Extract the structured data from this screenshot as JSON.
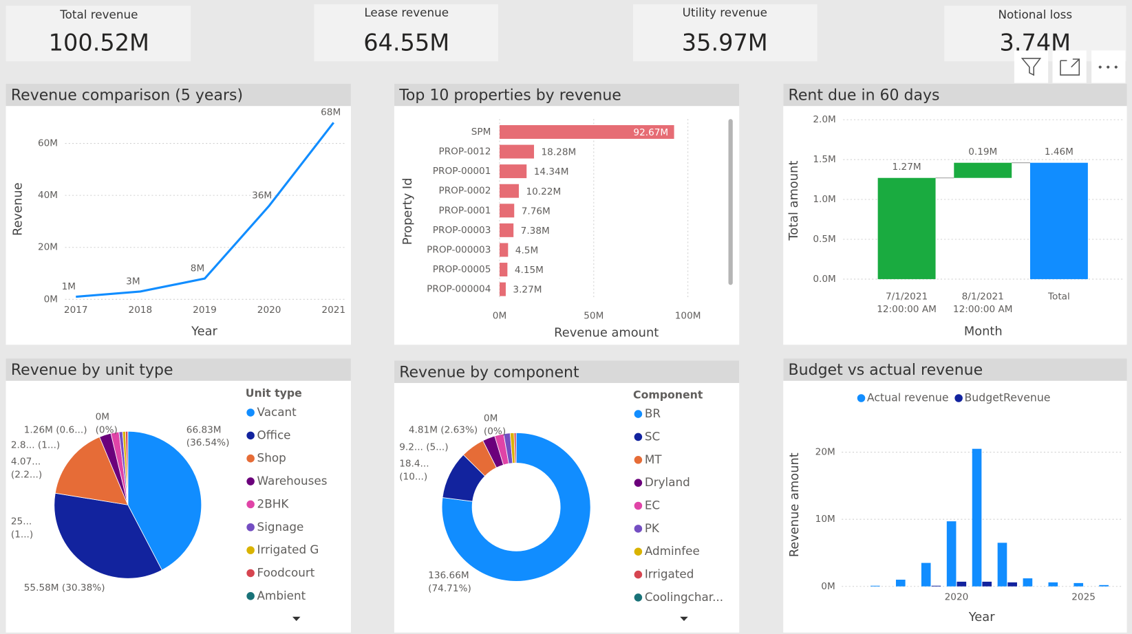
{
  "cards": [
    {
      "label": "Total revenue",
      "value": "100.52M"
    },
    {
      "label": "Lease revenue",
      "value": "64.55M"
    },
    {
      "label": "Utility revenue",
      "value": "35.97M"
    },
    {
      "label": "Notional loss",
      "value": "3.74M"
    }
  ],
  "chart_data": [
    {
      "type": "line",
      "title": "Revenue comparison (5 years)",
      "x_label": "Year",
      "y_label": "Revenue",
      "x": [
        2017,
        2018,
        2019,
        2020,
        2021
      ],
      "values": [
        1,
        3,
        8,
        36,
        68
      ],
      "value_labels": [
        "1M",
        "3M",
        "8M",
        "36M",
        "68M"
      ],
      "color": "#118dff",
      "xlim": [
        2017,
        2021
      ],
      "ylim": [
        0,
        73
      ],
      "xticks": [
        2017,
        2018,
        2019,
        2020,
        2021
      ],
      "yticks": [
        {
          "value": 0,
          "label": "0M"
        },
        {
          "value": 20,
          "label": "20M"
        },
        {
          "value": 40,
          "label": "40M"
        },
        {
          "value": 60,
          "label": "60M"
        }
      ],
      "grid": true
    },
    {
      "type": "bar",
      "title": "Top 10 properties by revenue",
      "x_label": "Revenue amount",
      "y_label": "Property Id",
      "categories": [
        "SPM",
        "PROP-0012",
        "PROP-00001",
        "PROP-0002",
        "PROP-0001",
        "PROP-00003",
        "PROP-000003",
        "PROP-00005",
        "PROP-000004"
      ],
      "values": [
        92.67,
        18.28,
        14.34,
        10.22,
        7.76,
        7.38,
        4.5,
        4.15,
        3.27
      ],
      "value_labels": [
        "92.67M",
        "18.28M",
        "14.34M",
        "10.22M",
        "7.76M",
        "7.38M",
        "4.5M",
        "4.15M",
        "3.27M"
      ],
      "color": "#e66c74",
      "xlim": [
        0,
        115
      ],
      "xticks": [
        {
          "value": 0,
          "label": "0M"
        },
        {
          "value": 50,
          "label": "50M"
        },
        {
          "value": 100,
          "label": "100M"
        }
      ],
      "grid": true
    },
    {
      "type": "waterfall",
      "title": "Rent due in 60 days",
      "x_label": "Month",
      "y_label": "Total amount",
      "categories": [
        "7/1/2021 12:00:00 AM",
        "8/1/2021 12:00:00 AM",
        "Total"
      ],
      "values": [
        1.27,
        0.19,
        1.46
      ],
      "value_labels": [
        "1.27M",
        "0.19M",
        "1.46M"
      ],
      "colors": [
        "#1aab40",
        "#1aab40",
        "#118dff"
      ],
      "show_total": true,
      "ylim": [
        0,
        2
      ],
      "yticks": [
        {
          "value": 0,
          "label": "0.0M"
        },
        {
          "value": 0.5,
          "label": "0.5M"
        },
        {
          "value": 1,
          "label": "1.0M"
        },
        {
          "value": 1.5,
          "label": "1.5M"
        },
        {
          "value": 2,
          "label": "2.0M"
        }
      ],
      "grid": true
    },
    {
      "type": "pie",
      "title": "Revenue by unit type",
      "legend_title": "Unit type",
      "categories": [
        "Vacant",
        "Office",
        "Shop",
        "Warehouses",
        "2BHK",
        "Signage",
        "Irrigated G",
        "Foodcourt",
        "Ambient"
      ],
      "values": [
        66.83,
        55.58,
        25.5,
        4.07,
        2.8,
        1.26,
        1.0,
        0.8,
        0
      ],
      "value_labels": [
        "66.83M (36.54%)",
        "55.58M (30.38%)",
        "25... (1...)",
        "4.07... (2.2...)",
        "2.8... (1...)",
        "1.26M (0.6...)",
        null,
        null,
        "0M (0%)"
      ],
      "colors": [
        "#118dff",
        "#12239e",
        "#e66c37",
        "#6b007b",
        "#e044a7",
        "#744ec2",
        "#d9b300",
        "#d64550",
        "#197278"
      ]
    },
    {
      "type": "donut",
      "title": "Revenue by component",
      "legend_title": "Component",
      "categories": [
        "BR",
        "SC",
        "MT",
        "Dryland",
        "EC",
        "PK",
        "Adminfee",
        "Irrigated",
        "Coolingchar..."
      ],
      "values": [
        136.66,
        18.4,
        9.2,
        4.81,
        3.5,
        2.5,
        1.5,
        0.8,
        0
      ],
      "value_labels": [
        "136.66M (74.71%)",
        "18.4... (10...)",
        "9.2... (5...)",
        "4.81M (2.63%)",
        null,
        null,
        null,
        null,
        "0M (0%)"
      ],
      "colors": [
        "#118dff",
        "#12239e",
        "#e66c37",
        "#6b007b",
        "#e044a7",
        "#744ec2",
        "#d9b300",
        "#d64550",
        "#197278"
      ]
    },
    {
      "type": "column",
      "title": "Budget vs actual revenue",
      "x_label": "Year",
      "y_label": "Revenue amount",
      "x": [
        2017,
        2018,
        2019,
        2020,
        2021,
        2022,
        2023,
        2024,
        2025,
        2026
      ],
      "series": [
        {
          "name": "Actual revenue",
          "color": "#118dff",
          "values": [
            0.1,
            1.0,
            3.5,
            9.7,
            20.5,
            6.5,
            1.2,
            0.6,
            0.5,
            0.2
          ]
        },
        {
          "name": "BudgetRevenue",
          "color": "#12239e",
          "values": [
            0,
            0,
            0.1,
            0.7,
            0.7,
            0.6,
            0,
            0,
            0,
            0
          ]
        }
      ],
      "xlim": [
        2015.5,
        2026.5
      ],
      "ylim": [
        0,
        23
      ],
      "xticks": [
        2020,
        2025
      ],
      "yticks": [
        {
          "value": 0,
          "label": "0M"
        },
        {
          "value": 10,
          "label": "10M"
        },
        {
          "value": 20,
          "label": "20M"
        }
      ],
      "grid": true,
      "legend": "top"
    }
  ]
}
